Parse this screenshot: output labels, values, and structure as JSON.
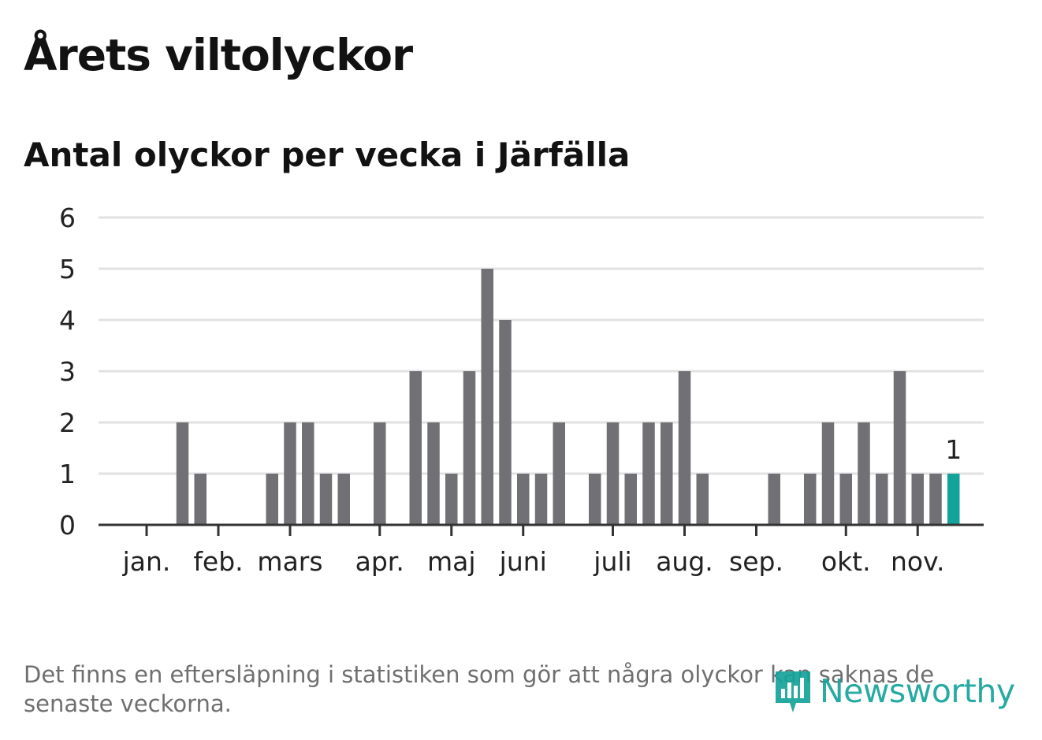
{
  "title": "Årets viltolyckor",
  "subtitle": "Antal olyckor per vecka i Järfälla",
  "footnote": "Det finns en eftersläpning i statistiken som gör att några olyckor kan saknas de senaste veckorna.",
  "brand": {
    "name": "Newsworthy",
    "icon": "newsworthy-logo-icon"
  },
  "colors": {
    "bar": "#707075",
    "highlight": "#14a39a",
    "grid": "#e2e2e2",
    "axis": "#333333"
  },
  "chart_data": {
    "type": "bar",
    "title": "Årets viltolyckor",
    "subtitle": "Antal olyckor per vecka i Järfälla",
    "xlabel": "",
    "ylabel": "",
    "ylim": [
      0,
      6
    ],
    "yticks": [
      0,
      1,
      2,
      3,
      4,
      5,
      6
    ],
    "grid": true,
    "x": [
      1,
      2,
      3,
      4,
      5,
      6,
      7,
      8,
      9,
      10,
      11,
      12,
      13,
      14,
      15,
      16,
      17,
      18,
      19,
      20,
      21,
      22,
      23,
      24,
      25,
      26,
      27,
      28,
      29,
      30,
      31,
      32,
      33,
      34,
      35,
      36,
      37,
      38,
      39,
      40,
      41,
      42,
      43,
      44,
      45,
      46,
      47,
      48,
      49
    ],
    "values": [
      0,
      0,
      0,
      0,
      2,
      1,
      0,
      0,
      0,
      1,
      2,
      2,
      1,
      1,
      0,
      2,
      0,
      3,
      2,
      1,
      3,
      5,
      4,
      1,
      1,
      2,
      0,
      1,
      2,
      1,
      2,
      2,
      3,
      1,
      0,
      0,
      0,
      1,
      0,
      1,
      2,
      1,
      2,
      1,
      3,
      1,
      1,
      1,
      0
    ],
    "highlight": {
      "week": 48,
      "value": 1,
      "label": "1"
    },
    "month_ticks": [
      {
        "label": "jan.",
        "week": 3
      },
      {
        "label": "feb.",
        "week": 7
      },
      {
        "label": "mars",
        "week": 11
      },
      {
        "label": "apr.",
        "week": 16
      },
      {
        "label": "maj",
        "week": 20
      },
      {
        "label": "juni",
        "week": 24
      },
      {
        "label": "juli",
        "week": 29
      },
      {
        "label": "aug.",
        "week": 33
      },
      {
        "label": "sep.",
        "week": 37
      },
      {
        "label": "okt.",
        "week": 42
      },
      {
        "label": "nov.",
        "week": 46
      }
    ]
  }
}
